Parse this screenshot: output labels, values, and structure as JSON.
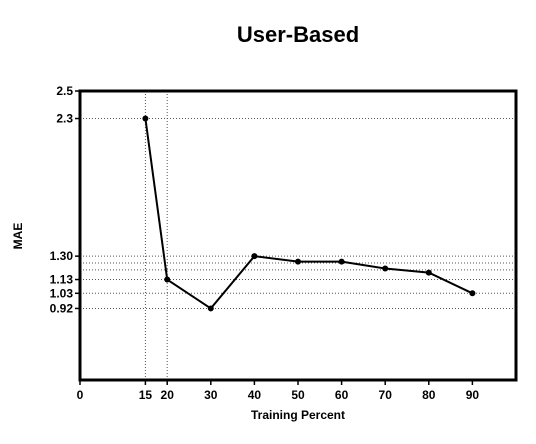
{
  "chart_data": {
    "type": "line",
    "title": "User-Based",
    "xlabel": "Training Percent",
    "ylabel": "MAE",
    "xlim": [
      0,
      100
    ],
    "ylim": [
      0.4,
      2.5
    ],
    "x_ticks": [
      0,
      15,
      20,
      30,
      40,
      50,
      60,
      70,
      80,
      90
    ],
    "y_ticks": [
      {
        "value": 2.5,
        "label": "2.5"
      },
      {
        "value": 2.3,
        "label": "2.3"
      },
      {
        "value": 1.3,
        "label": "1.30"
      },
      {
        "value": 1.13,
        "label": "1.13"
      },
      {
        "value": 1.03,
        "label": "1.03"
      },
      {
        "value": 0.92,
        "label": "0.92"
      }
    ],
    "grid_y_values": [
      2.3,
      1.3,
      1.25,
      1.2,
      1.13,
      1.03,
      0.92
    ],
    "grid_x_values": [
      15,
      20
    ],
    "series": [
      {
        "x": [
          15,
          20,
          30,
          40,
          50,
          60,
          70,
          80,
          90
        ],
        "y": [
          2.3,
          1.13,
          0.92,
          1.3,
          1.26,
          1.26,
          1.21,
          1.18,
          1.03
        ]
      }
    ],
    "line_color": "#000000"
  }
}
